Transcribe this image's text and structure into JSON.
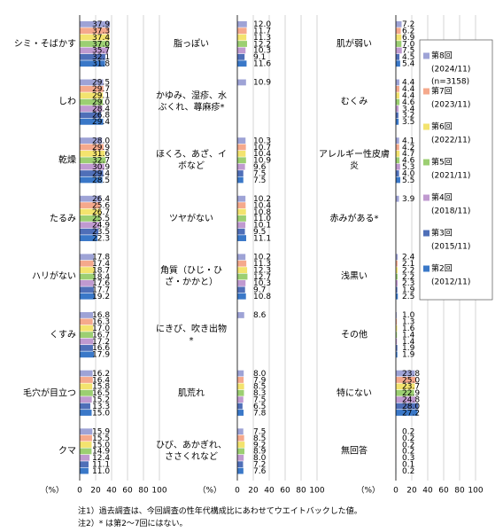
{
  "chart_data": [
    {
      "type": "bar",
      "orientation": "horizontal",
      "unit_label": "（%）",
      "xlim": [
        0,
        100
      ],
      "xticks": [
        0,
        20,
        40,
        60,
        80,
        100
      ],
      "grid": true,
      "categories": [
        "シミ・そばかす",
        "しわ",
        "乾燥",
        "たるみ",
        "ハリがない",
        "くすみ",
        "毛穴が目立つ",
        "クマ"
      ],
      "series": [
        {
          "color": "#9ea3d6",
          "values": [
            37.9,
            29.5,
            28.0,
            26.4,
            17.8,
            16.8,
            16.2,
            15.9
          ],
          "value_labels": [
            "37.9",
            "29.5",
            "28.0",
            "26.4",
            "17.8",
            "16.8",
            "16.2",
            "15.9"
          ]
        },
        {
          "color": "#f5a98c",
          "values": [
            37.3,
            29.7,
            29.9,
            25.6,
            17.4,
            16.3,
            16.4,
            15.5
          ],
          "value_labels": [
            "37.3",
            "29.7",
            "29.9",
            "25.6",
            "17.4",
            "16.3",
            "16.4",
            "15.5"
          ]
        },
        {
          "color": "#f3e36e",
          "values": [
            37.4,
            29.1,
            31.6,
            26.7,
            18.7,
            17.0,
            15.8,
            15.0
          ],
          "value_labels": [
            "37.4",
            "29.1",
            "31.6",
            "26.7",
            "18.7",
            "17.0",
            "15.8",
            "15.0"
          ]
        },
        {
          "color": "#9ccf72",
          "values": [
            37.0,
            29.0,
            32.7,
            25.5,
            18.4,
            16.7,
            16.5,
            14.9
          ],
          "value_labels": [
            "37.0",
            "29.0",
            "32.7",
            "25.5",
            "18.4",
            "16.7",
            "16.5",
            "14.9"
          ]
        },
        {
          "color": "#c09ad0",
          "values": [
            35.7,
            28.4,
            30.9,
            24.9,
            17.6,
            17.2,
            15.2,
            12.4
          ],
          "value_labels": [
            "35.7",
            "28.4",
            "30.9",
            "24.9",
            "17.6",
            "17.2",
            "15.2",
            "12.4"
          ]
        },
        {
          "color": "#4f6fb8",
          "values": [
            32.1,
            26.8,
            29.4,
            23.5,
            17.7,
            16.6,
            13.3,
            11.1
          ],
          "value_labels": [
            "32.1",
            "26.8",
            "29.4",
            "23.5",
            "17.7",
            "16.6",
            "13.3",
            "11.1"
          ]
        },
        {
          "color": "#3a78c8",
          "values": [
            31.8,
            29.4,
            28.5,
            22.3,
            19.2,
            17.9,
            15.0,
            11.0
          ],
          "value_labels": [
            "31.8",
            "29.4",
            "28.5",
            "22.3",
            "19.2",
            "17.9",
            "15.0",
            "11.0"
          ]
        }
      ]
    },
    {
      "type": "bar",
      "orientation": "horizontal",
      "unit_label": "（%）",
      "xlim": [
        0,
        100
      ],
      "xticks": [
        0,
        20,
        40,
        60,
        80,
        100
      ],
      "grid": true,
      "categories": [
        "脂っぽい",
        "かゆみ、湿疹、水ぶくれ、蕁麻疹*",
        "ほくろ、あざ、イボなど",
        "ツヤがない",
        "角質（ひじ・ひざ・かかと）",
        "にきび、吹き出物*",
        "肌荒れ",
        "ひび、あかぎれ、ささくれなど"
      ],
      "series": [
        {
          "color": "#9ea3d6",
          "values": [
            12.0,
            10.9,
            10.3,
            10.2,
            10.2,
            8.6,
            8.0,
            7.5
          ],
          "value_labels": [
            "12.0",
            "10.9",
            "10.3",
            "10.2",
            "10.2",
            "8.6",
            "8.0",
            "7.5"
          ]
        },
        {
          "color": "#f5a98c",
          "values": [
            11.7,
            null,
            10.7,
            10.4,
            11.3,
            null,
            7.9,
            8.5
          ],
          "value_labels": [
            "11.7",
            null,
            "10.7",
            "10.4",
            "11.3",
            null,
            "7.9",
            "8.5"
          ]
        },
        {
          "color": "#f3e36e",
          "values": [
            11.3,
            null,
            10.4,
            10.8,
            12.3,
            null,
            8.5,
            9.2
          ],
          "value_labels": [
            "11.3",
            null,
            "10.4",
            "10.8",
            "12.3",
            null,
            "8.5",
            "9.2"
          ]
        },
        {
          "color": "#9ccf72",
          "values": [
            12.2,
            null,
            10.9,
            11.0,
            12.7,
            null,
            8.3,
            8.9
          ],
          "value_labels": [
            "12.2",
            null,
            "10.9",
            "11.0",
            "12.7",
            null,
            "8.3",
            "8.9"
          ]
        },
        {
          "color": "#c09ad0",
          "values": [
            10.3,
            null,
            9.6,
            10.1,
            10.3,
            null,
            7.5,
            8.0
          ],
          "value_labels": [
            "10.3",
            null,
            "9.6",
            "10.1",
            "10.3",
            null,
            "7.5",
            "8.0"
          ]
        },
        {
          "color": "#4f6fb8",
          "values": [
            9.1,
            null,
            7.5,
            9.5,
            9.7,
            null,
            6.5,
            7.2
          ],
          "value_labels": [
            "9.1",
            null,
            "7.5",
            "9.5",
            "9.7",
            null,
            "6.5",
            "7.2"
          ]
        },
        {
          "color": "#3a78c8",
          "values": [
            11.6,
            null,
            7.5,
            11.1,
            10.8,
            null,
            7.8,
            7.6
          ],
          "value_labels": [
            "11.6",
            null,
            "7.5",
            "11.1",
            "10.8",
            null,
            "7.8",
            "7.6"
          ]
        }
      ]
    },
    {
      "type": "bar",
      "orientation": "horizontal",
      "unit_label": "（%）",
      "xlim": [
        0,
        100
      ],
      "xticks": [
        0,
        20,
        40,
        60,
        80,
        100
      ],
      "grid": true,
      "categories": [
        "肌が弱い",
        "むくみ",
        "アレルギー性皮膚炎",
        "赤みがある*",
        "浅黒い",
        "その他",
        "特にない",
        "無回答"
      ],
      "series": [
        {
          "name": "第8回",
          "period": "(2024/11)",
          "sample": "(n=3158)",
          "color": "#9ea3d6",
          "values": [
            7.2,
            4.4,
            4.1,
            3.9,
            2.4,
            1.0,
            23.8,
            0.2
          ],
          "value_labels": [
            "7.2",
            "4.4",
            "4.1",
            "3.9",
            "2.4",
            "1.0",
            "23.8",
            "0.2"
          ]
        },
        {
          "name": "第7回",
          "period": "(2023/11)",
          "color": "#f5a98c",
          "values": [
            6.2,
            4.4,
            4.2,
            null,
            2.1,
            1.3,
            25.0,
            0.2
          ],
          "value_labels": [
            "6.2",
            "4.4",
            "4.2",
            null,
            "2.1",
            "1.3",
            "25.0",
            "0.2"
          ]
        },
        {
          "name": "第6回",
          "period": "(2022/11)",
          "color": "#f3e36e",
          "values": [
            6.9,
            4.4,
            4.7,
            null,
            2.2,
            1.6,
            23.7,
            0.2
          ],
          "value_labels": [
            "6.9",
            "4.4",
            "4.7",
            null,
            "2.2",
            "1.6",
            "23.7",
            "0.2"
          ]
        },
        {
          "name": "第5回",
          "period": "(2021/11)",
          "color": "#9ccf72",
          "values": [
            7.0,
            4.6,
            4.6,
            null,
            2.2,
            1.4,
            22.9,
            0.2
          ],
          "value_labels": [
            "7.0",
            "4.6",
            "4.6",
            null,
            "2.2",
            "1.4",
            "22.9",
            "0.2"
          ]
        },
        {
          "name": "第4回",
          "period": "(2018/11)",
          "color": "#c09ad0",
          "values": [
            7.5,
            3.4,
            5.3,
            null,
            2.3,
            1.4,
            24.8,
            0.3
          ],
          "value_labels": [
            "7.5",
            "3.4",
            "5.3",
            null,
            "2.3",
            "1.4",
            "24.8",
            "0.3"
          ]
        },
        {
          "name": "第3回",
          "period": "(2015/11)",
          "color": "#4f6fb8",
          "values": [
            4.5,
            3.2,
            4.0,
            null,
            1.9,
            1.9,
            28.0,
            0.1
          ],
          "value_labels": [
            "4.5",
            "3.2",
            "4.0",
            null,
            "1.9",
            "1.9",
            "28.0",
            "0.1"
          ]
        },
        {
          "name": "第2回",
          "period": "(2012/11)",
          "color": "#3a78c8",
          "values": [
            5.4,
            3.5,
            5.5,
            null,
            2.5,
            1.9,
            27.2,
            0.2
          ],
          "value_labels": [
            "5.4",
            "3.5",
            "5.5",
            null,
            "2.5",
            "1.9",
            "27.2",
            "0.2"
          ]
        }
      ]
    }
  ],
  "notes": [
    "注1）過去調査は、今回調査の性年代構成比にあわせてウエイトバックした値。",
    "注2）* は第2～7回にはない。"
  ]
}
